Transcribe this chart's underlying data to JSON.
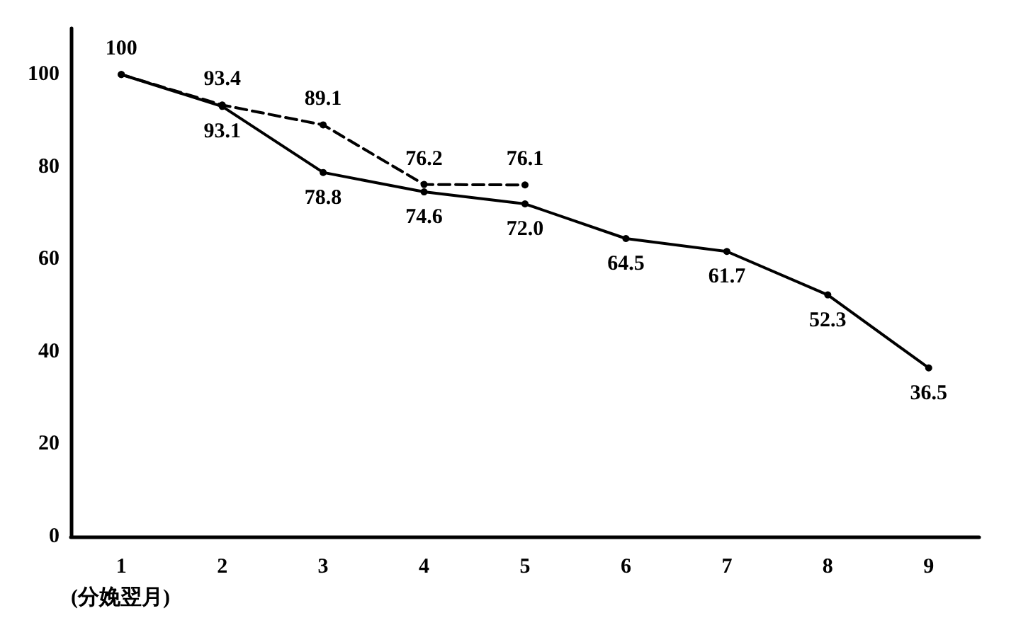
{
  "chart_data": {
    "type": "line",
    "xlabel": "(分娩翌月)",
    "categories": [
      "1",
      "2",
      "3",
      "4",
      "5",
      "6",
      "7",
      "8",
      "9"
    ],
    "series": [
      {
        "color": "#000000",
        "line_style": "solid",
        "values": [
          100,
          93.1,
          78.8,
          74.6,
          72.0,
          64.5,
          61.7,
          52.3,
          36.5
        ],
        "value_labels": [
          "100",
          "93.1",
          "78.8",
          "74.6",
          "72.0",
          "64.5",
          "61.7",
          "52.3",
          "36.5"
        ]
      },
      {
        "color": "#000000",
        "line_style": "dashed",
        "values": [
          100,
          93.4,
          89.1,
          76.2,
          76.1,
          null,
          null,
          null,
          null
        ],
        "value_labels": [
          null,
          "93.4",
          "89.1",
          "76.2",
          "76.1",
          null,
          null,
          null,
          null
        ]
      }
    ],
    "ylim": [
      0,
      110
    ],
    "yticks": [
      0,
      20,
      40,
      60,
      80,
      100
    ],
    "grid": false,
    "marker": "circle"
  }
}
